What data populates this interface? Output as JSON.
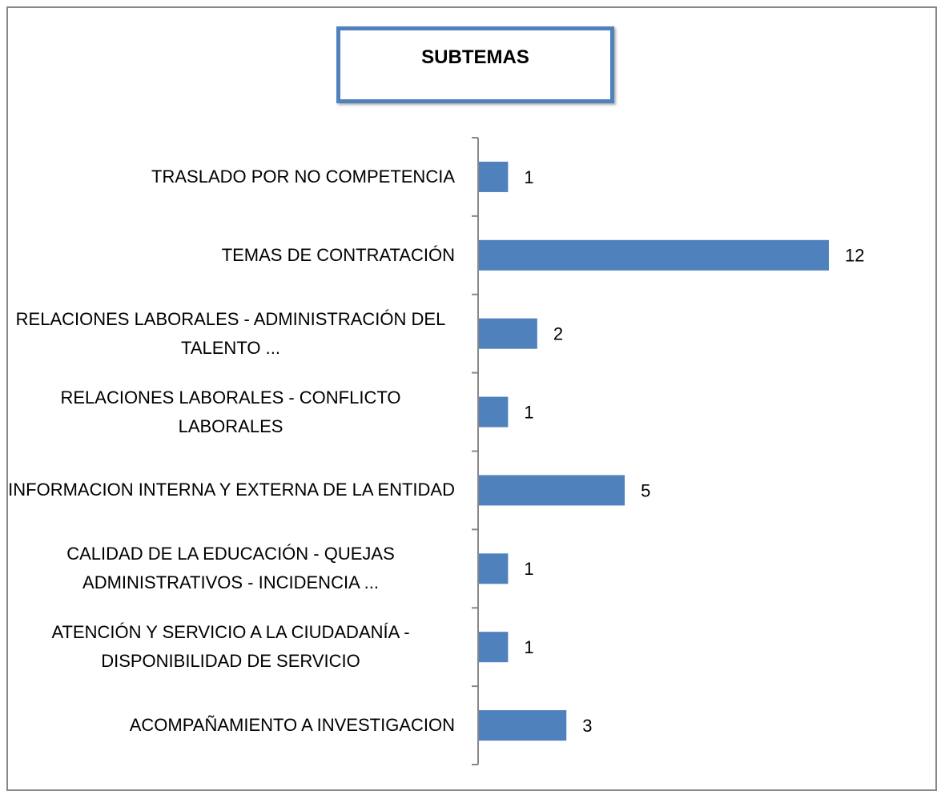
{
  "chart_data": {
    "type": "barh",
    "title": "SUBTEMAS",
    "categories": [
      "TRASLADO POR NO COMPETENCIA",
      "TEMAS DE CONTRATACIÓN",
      "RELACIONES LABORALES - ADMINISTRACIÓN DEL TALENTO ...",
      "RELACIONES LABORALES - CONFLICTO LABORALES",
      "INFORMACION INTERNA Y EXTERNA DE LA ENTIDAD",
      "CALIDAD DE LA EDUCACIÓN - QUEJAS ADMINISTRATIVOS - INCIDENCIA ...",
      "ATENCIÓN Y SERVICIO A LA CIUDADANÍA - DISPONIBILIDAD DE SERVICIO",
      "ACOMPAÑAMIENTO A INVESTIGACION"
    ],
    "values": [
      1,
      12,
      2,
      1,
      5,
      1,
      1,
      3
    ],
    "color": "#4f81bd",
    "xlim": [
      0,
      12
    ]
  }
}
